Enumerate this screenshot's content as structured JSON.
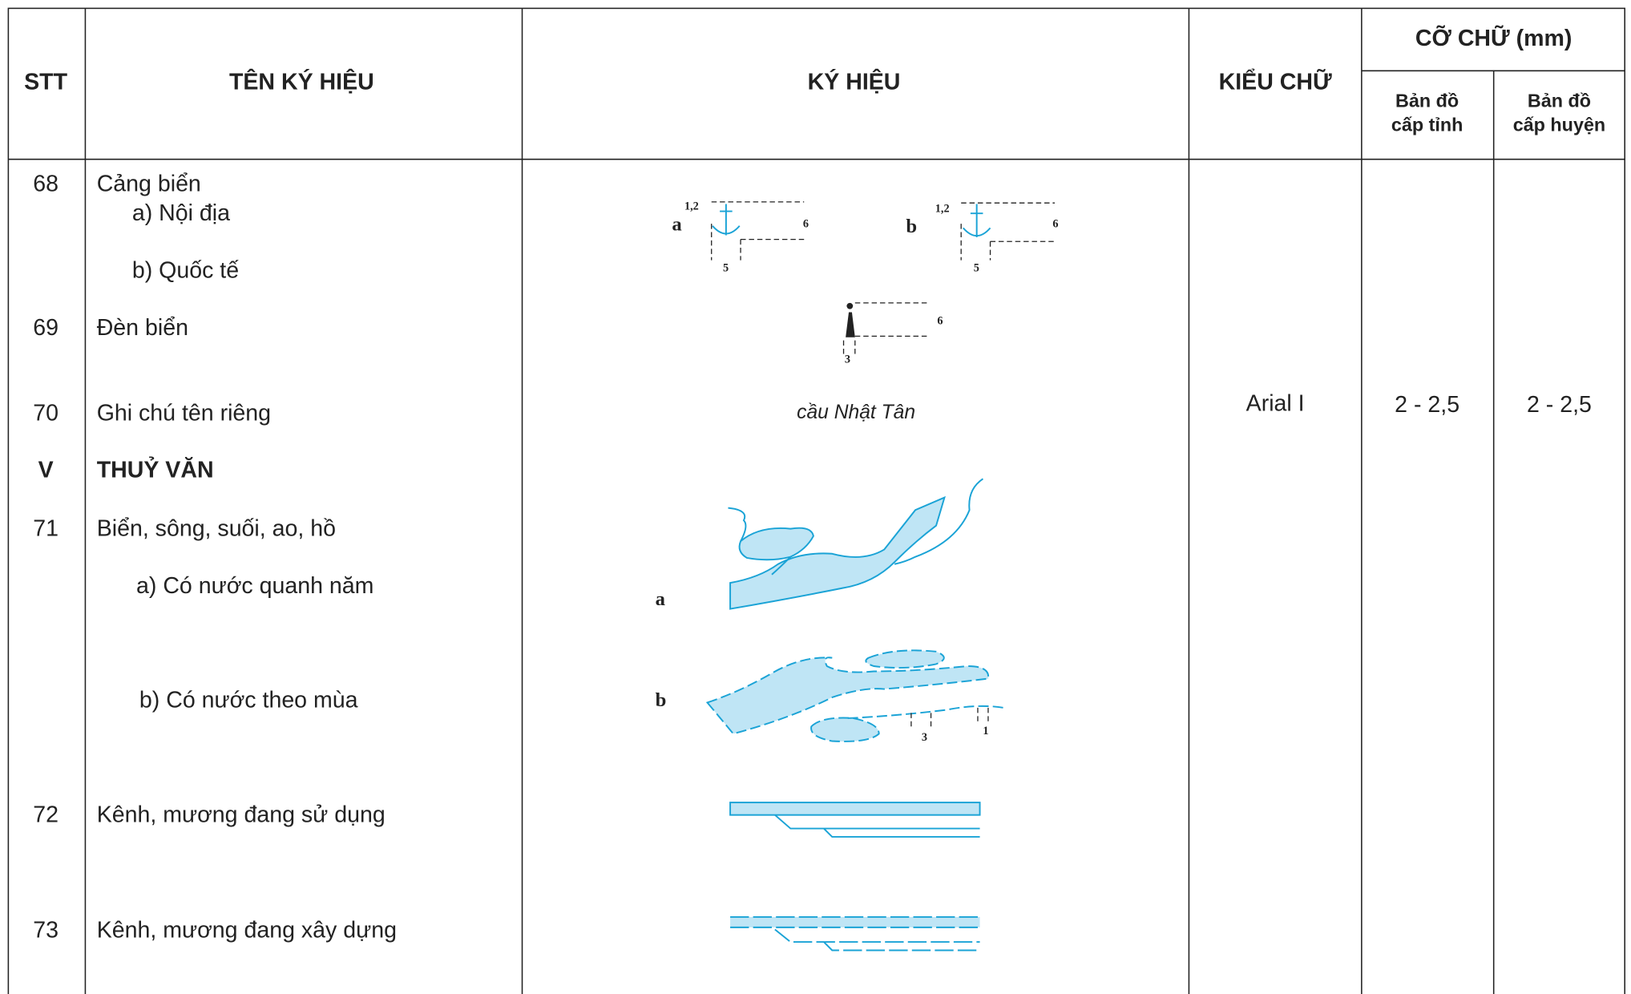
{
  "header": {
    "stt": "STT",
    "name": "TÊN KÝ HIỆU",
    "symbol": "KÝ HIỆU",
    "font": "KIỂU CHỮ",
    "size": "CỠ CHỮ (mm)",
    "province": [
      "Bản đồ",
      "cấp tỉnh"
    ],
    "district": [
      "Bản đồ",
      "cấp huyện"
    ]
  },
  "rows": [
    {
      "stt": "68",
      "name": "Cảng biển"
    },
    {
      "stt": null,
      "name": "a) Nội địa"
    },
    {
      "stt": null,
      "name": "b) Quốc tế"
    },
    {
      "stt": "69",
      "name": "Đèn biển"
    },
    {
      "stt": "70",
      "name": "Ghi chú tên riêng"
    },
    {
      "stt": "V",
      "name": "THUỶ VĂN"
    },
    {
      "stt": "71",
      "name": "Biển, sông, suối, ao, hồ"
    },
    {
      "stt": null,
      "name": "a) Có nước quanh năm"
    },
    {
      "stt": null,
      "name": "b) Có nước theo mùa"
    },
    {
      "stt": "72",
      "name": "Kênh, mương đang sử dụng"
    },
    {
      "stt": "73",
      "name": "Kênh, mương đang xây dựng"
    }
  ],
  "font_style": "Arial I",
  "size_province": "2 - 2,5",
  "size_district": "2 - 2,5",
  "symbols": {
    "port_a": [
      "a",
      "1,2",
      "6",
      "5"
    ],
    "port_b": [
      "b",
      "1,2",
      "6",
      "5"
    ],
    "lighthouse": [
      "6",
      "3"
    ],
    "name_sample": "cầu Nhật Tân",
    "river_a": [
      "a"
    ],
    "river_b": [
      "b",
      "3",
      "1"
    ]
  }
}
